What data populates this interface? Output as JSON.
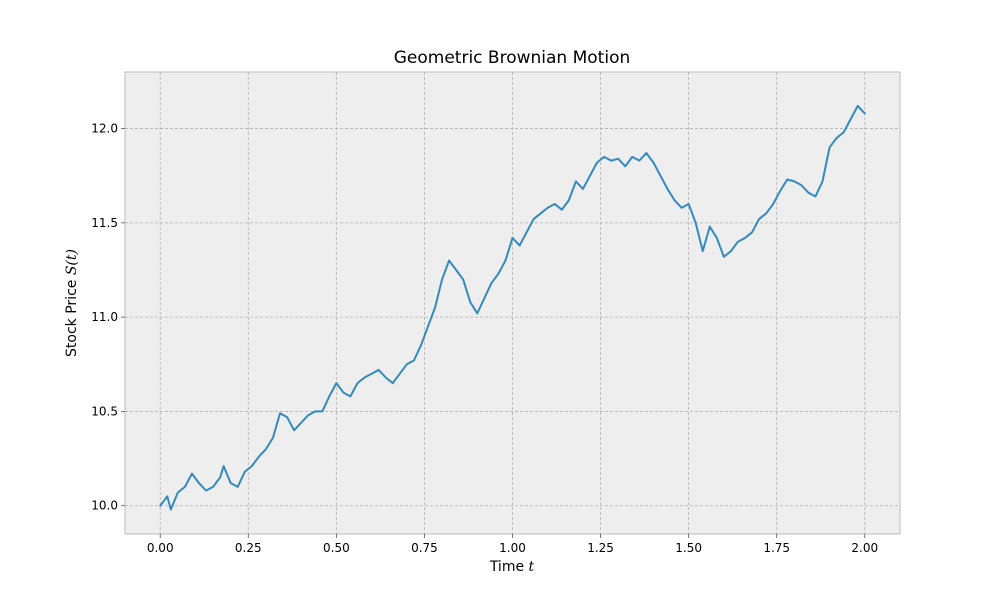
{
  "chart_data": {
    "type": "line",
    "title": "Geometric Brownian Motion",
    "xlabel_text": "Time ",
    "xlabel_var": "t",
    "ylabel_text": "Stock Price ",
    "ylabel_var": "S(t)",
    "xlim": [
      -0.1,
      2.1
    ],
    "ylim": [
      9.85,
      12.3
    ],
    "xticks": [
      0.0,
      0.25,
      0.5,
      0.75,
      1.0,
      1.25,
      1.5,
      1.75,
      2.0
    ],
    "xtick_labels": [
      "0.00",
      "0.25",
      "0.50",
      "0.75",
      "1.00",
      "1.25",
      "1.50",
      "1.75",
      "2.00"
    ],
    "yticks": [
      10.0,
      10.5,
      11.0,
      11.5,
      12.0
    ],
    "ytick_labels": [
      "10.0",
      "10.5",
      "11.0",
      "11.5",
      "12.0"
    ],
    "grid": true,
    "series": [
      {
        "color": "#348ABD",
        "x": [
          0.0,
          0.02,
          0.03,
          0.05,
          0.07,
          0.09,
          0.11,
          0.13,
          0.15,
          0.17,
          0.18,
          0.2,
          0.22,
          0.24,
          0.26,
          0.28,
          0.3,
          0.32,
          0.34,
          0.36,
          0.38,
          0.4,
          0.42,
          0.44,
          0.46,
          0.48,
          0.5,
          0.52,
          0.54,
          0.56,
          0.58,
          0.6,
          0.62,
          0.64,
          0.66,
          0.68,
          0.7,
          0.72,
          0.74,
          0.76,
          0.78,
          0.8,
          0.82,
          0.84,
          0.86,
          0.88,
          0.9,
          0.92,
          0.94,
          0.96,
          0.98,
          1.0,
          1.02,
          1.04,
          1.06,
          1.08,
          1.1,
          1.12,
          1.14,
          1.16,
          1.18,
          1.2,
          1.22,
          1.24,
          1.26,
          1.28,
          1.3,
          1.32,
          1.34,
          1.36,
          1.38,
          1.4,
          1.42,
          1.44,
          1.46,
          1.48,
          1.5,
          1.52,
          1.54,
          1.56,
          1.58,
          1.6,
          1.62,
          1.64,
          1.66,
          1.68,
          1.7,
          1.72,
          1.74,
          1.76,
          1.78,
          1.8,
          1.82,
          1.84,
          1.86,
          1.88,
          1.9,
          1.92,
          1.94,
          1.96,
          1.98,
          2.0
        ],
        "y": [
          10.0,
          10.05,
          9.98,
          10.07,
          10.1,
          10.17,
          10.12,
          10.08,
          10.1,
          10.15,
          10.21,
          10.12,
          10.1,
          10.18,
          10.21,
          10.26,
          10.3,
          10.36,
          10.49,
          10.47,
          10.4,
          10.44,
          10.48,
          10.5,
          10.5,
          10.58,
          10.65,
          10.6,
          10.58,
          10.65,
          10.68,
          10.7,
          10.72,
          10.68,
          10.65,
          10.7,
          10.75,
          10.77,
          10.85,
          10.95,
          11.05,
          11.2,
          11.3,
          11.25,
          11.2,
          11.08,
          11.02,
          11.1,
          11.18,
          11.23,
          11.3,
          11.42,
          11.38,
          11.45,
          11.52,
          11.55,
          11.58,
          11.6,
          11.57,
          11.62,
          11.72,
          11.68,
          11.75,
          11.82,
          11.85,
          11.83,
          11.84,
          11.8,
          11.85,
          11.83,
          11.87,
          11.82,
          11.75,
          11.68,
          11.62,
          11.58,
          11.6,
          11.5,
          11.35,
          11.48,
          11.42,
          11.32,
          11.35,
          11.4,
          11.42,
          11.45,
          11.52,
          11.55,
          11.6,
          11.67,
          11.73,
          11.72,
          11.7,
          11.66,
          11.64,
          11.72,
          11.9,
          11.95,
          11.98,
          12.05,
          12.12,
          12.08
        ]
      }
    ]
  }
}
